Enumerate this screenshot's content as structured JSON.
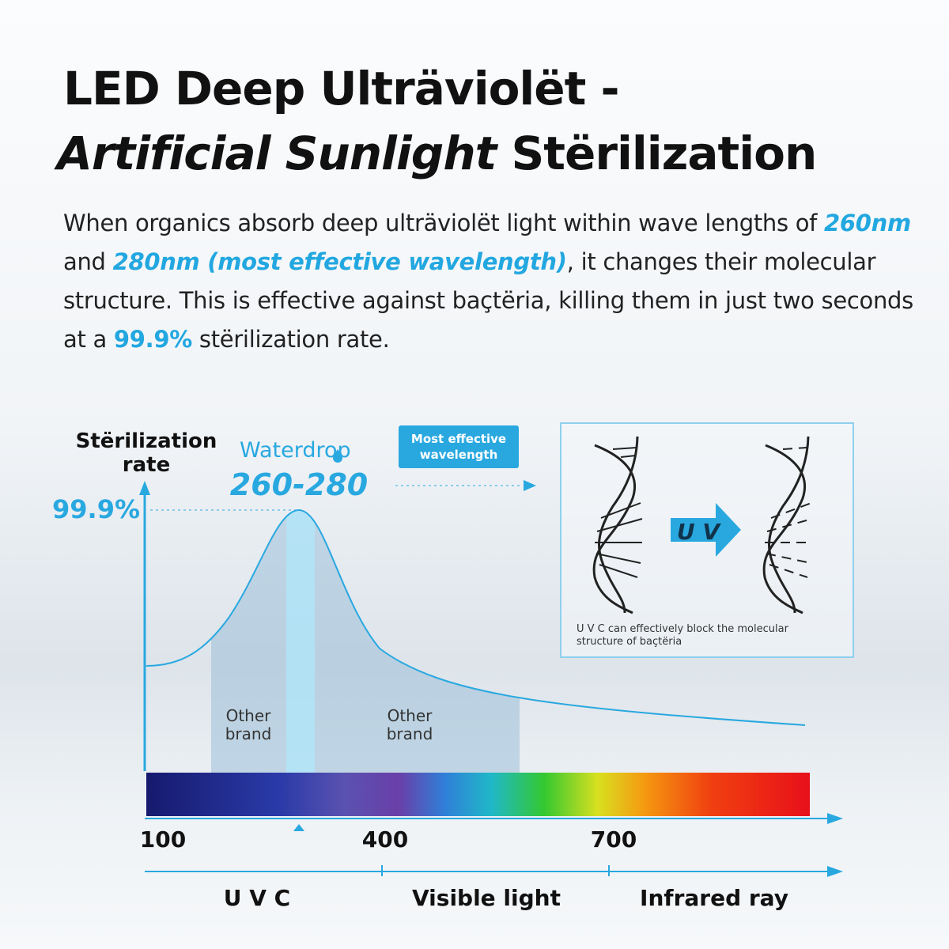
{
  "title": {
    "line1": "LED Deep Ulträviolët -",
    "line2_italic": "Artificial Sunlight",
    "line2_rest": " Stërilization"
  },
  "paragraph": {
    "p1": "When organics absorb deep ulträviolët light within wave lengths of ",
    "h1": "260nm",
    "p2": " and ",
    "h2": "280nm (most effective wavelength)",
    "p3": ", it changes their molecular structure. This is effective against baçtëria, killing them in just two seconds at a ",
    "h3": "99.9%",
    "p4": " stërilization rate."
  },
  "chart": {
    "y_label_1": "Stërilization",
    "y_label_2": "rate",
    "peak_value": "99.9%",
    "brand": "Waterdrop",
    "brand_range": "260-280",
    "other_brand_left_1": "Other",
    "other_brand_left_2": "brand",
    "other_brand_right_1": "Other",
    "other_brand_right_2": "brand",
    "x_ticks": [
      "100",
      "400",
      "700"
    ],
    "regions": [
      "U V C",
      "Visible light",
      "Infrared ray"
    ],
    "accent_color": "#29a8e0"
  },
  "callout": {
    "badge_1": "Most effective",
    "badge_2": "wavelength",
    "uv_label": "U V",
    "caption_1": "U V C can effectively block the molecular",
    "caption_2": "structure of baçtëria"
  }
}
